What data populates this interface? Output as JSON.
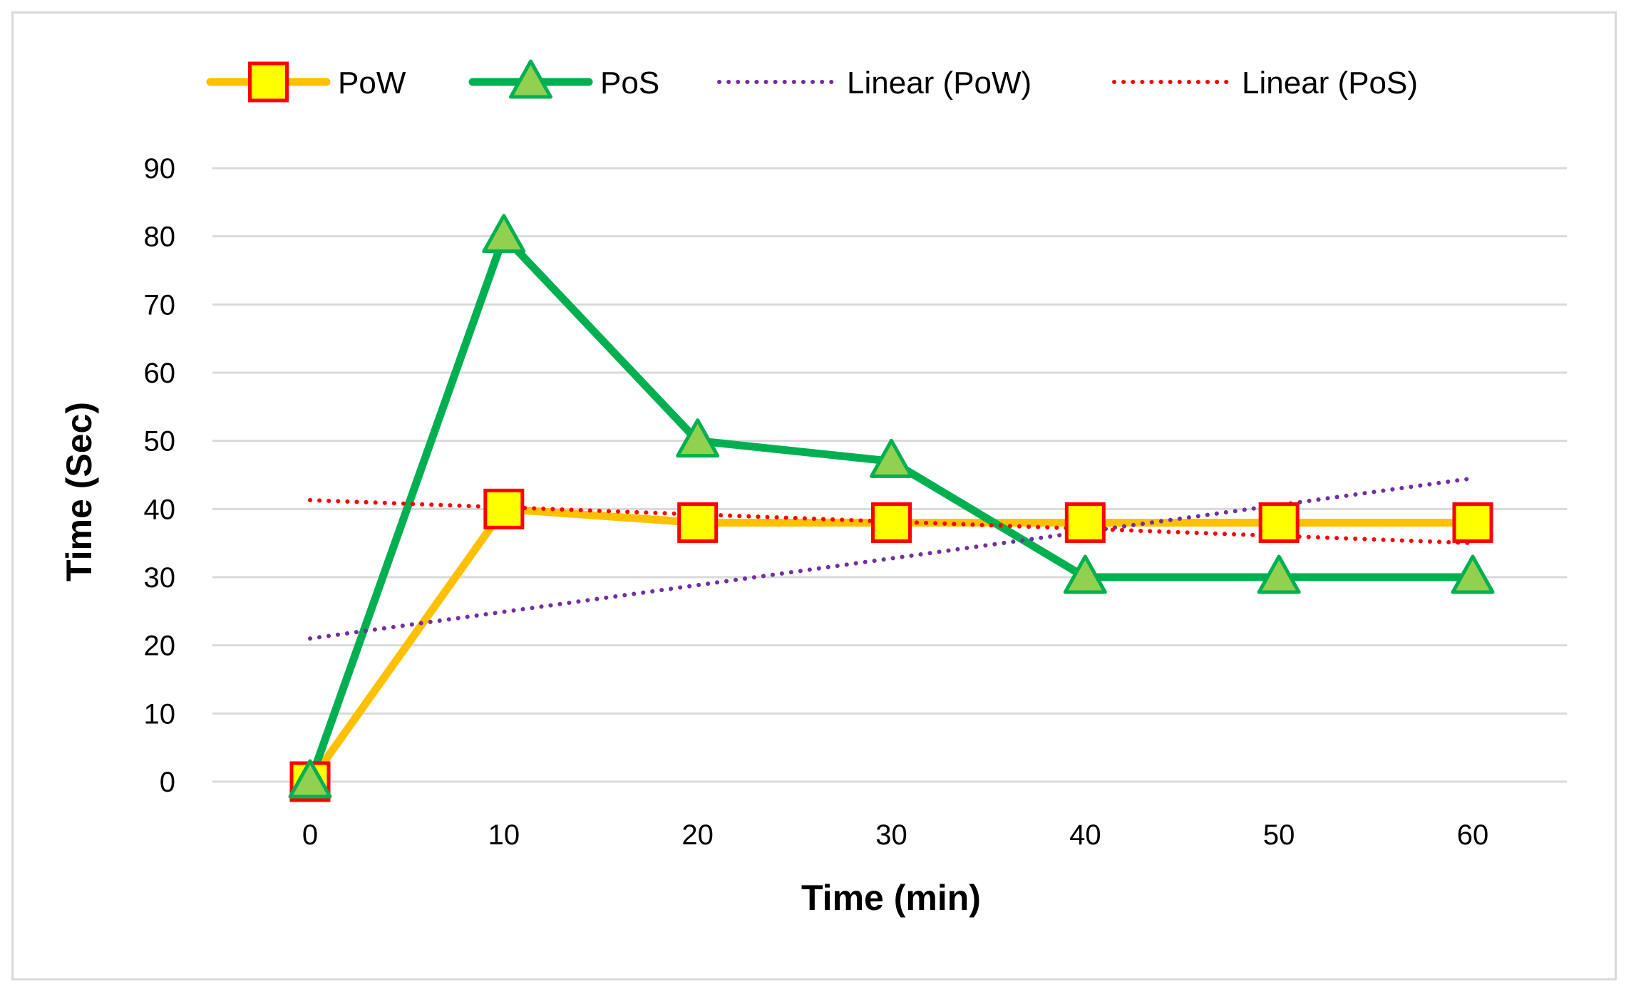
{
  "chart_data": {
    "type": "line",
    "title": "",
    "xlabel": "Time (min)",
    "ylabel": "Time (Sec)",
    "categories": [
      "0",
      "10",
      "20",
      "30",
      "40",
      "50",
      "60"
    ],
    "x": [
      0,
      10,
      20,
      30,
      40,
      50,
      60
    ],
    "ylim": [
      0,
      90
    ],
    "yticks": [
      "0",
      "10",
      "20",
      "30",
      "40",
      "50",
      "60",
      "70",
      "80",
      "90"
    ],
    "grid": true,
    "legend_position": "top",
    "series": [
      {
        "name": "PoW",
        "values": [
          0,
          40,
          38,
          38,
          38,
          38,
          38
        ],
        "color": "#FFC000",
        "marker": "square",
        "marker_fill": "#FFFF00",
        "marker_edge": "#FF0000"
      },
      {
        "name": "PoS",
        "values": [
          0,
          80,
          50,
          47,
          30,
          30,
          30
        ],
        "color": "#00B050",
        "marker": "triangle",
        "marker_fill": "#92D050",
        "marker_edge": "#00B050"
      }
    ],
    "trendlines": [
      {
        "name": "Linear (PoW)",
        "of": "PoW",
        "start": 21.0,
        "end": 44.5,
        "color": "#7030A0",
        "style": "dotted"
      },
      {
        "name": "Linear (PoS)",
        "of": "PoS",
        "start": 41.3,
        "end": 35.0,
        "color": "#FF0000",
        "style": "dotted"
      }
    ]
  }
}
